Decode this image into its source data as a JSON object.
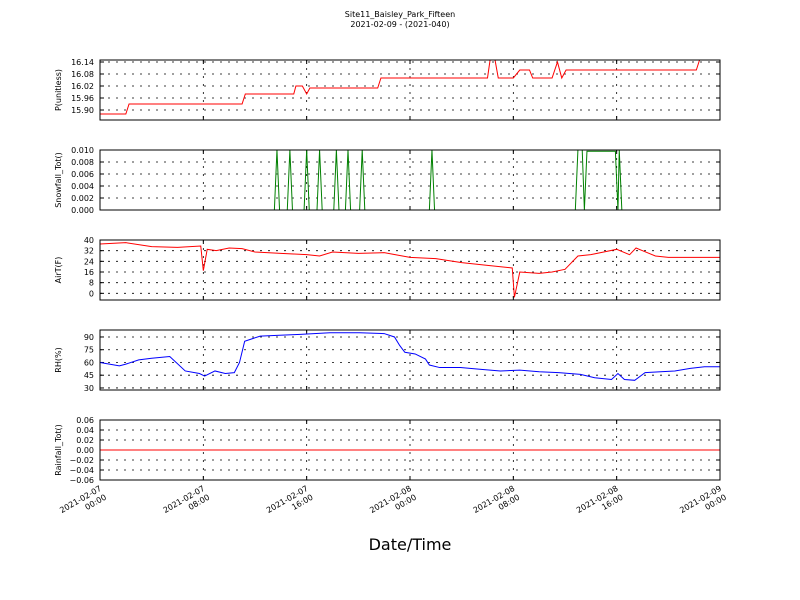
{
  "chart_data": [
    {
      "type": "line",
      "title": "Site11_Baisley_Park_Fifteen",
      "subtitle": "2021-02-09 - (2021-040)",
      "ylabel": "P(unitless)",
      "color": "#ff0000",
      "grid": true,
      "xlim": [
        "2021-02-07 00:00",
        "2021-02-09 00:00"
      ],
      "ylim": [
        15.85,
        16.15
      ],
      "yticks": [
        {
          "value": 15.9,
          "label": "15.90"
        },
        15.96,
        16.02,
        16.08,
        16.14
      ],
      "x": [
        "2021-02-07 00:00",
        "2021-02-07 02:00",
        "2021-02-07 02:15",
        "2021-02-07 11:00",
        "2021-02-07 11:15",
        "2021-02-07 15:00",
        "2021-02-07 15:10",
        "2021-02-07 15:40",
        "2021-02-07 16:00",
        "2021-02-07 16:15",
        "2021-02-07 21:30",
        "2021-02-07 21:45",
        "2021-02-08 06:00",
        "2021-02-08 06:12",
        "2021-02-08 06:35",
        "2021-02-08 06:50",
        "2021-02-08 08:00",
        "2021-02-08 08:30",
        "2021-02-08 09:15",
        "2021-02-08 09:30",
        "2021-02-08 11:00",
        "2021-02-08 11:25",
        "2021-02-08 11:45",
        "2021-02-08 12:05",
        "2021-02-08 22:10",
        "2021-02-08 22:25",
        "2021-02-09 00:00"
      ],
      "values": [
        15.88,
        15.88,
        15.93,
        15.93,
        15.98,
        15.98,
        16.02,
        16.02,
        15.98,
        16.01,
        16.01,
        16.06,
        16.06,
        16.15,
        16.15,
        16.06,
        16.06,
        16.1,
        16.1,
        16.06,
        16.06,
        16.14,
        16.06,
        16.1,
        16.1,
        16.15,
        16.15
      ]
    },
    {
      "type": "line",
      "ylabel": "Snowfall_Tot()",
      "color": "#008000",
      "grid": true,
      "xlim": [
        "2021-02-07 00:00",
        "2021-02-09 00:00"
      ],
      "ylim": [
        0,
        0.01
      ],
      "yticks": [
        {
          "value": 0,
          "label": "0.000"
        },
        {
          "value": 0.002,
          "label": "0.002"
        },
        {
          "value": 0.004,
          "label": "0.004"
        },
        {
          "value": 0.006,
          "label": "0.006"
        },
        {
          "value": 0.008,
          "label": "0.008"
        },
        {
          "value": 0.01,
          "label": "0.010"
        }
      ],
      "x": [
        "2021-02-07 00:00",
        "2021-02-07 13:30",
        "2021-02-07 13:42",
        "2021-02-07 13:54",
        "2021-02-07 14:30",
        "2021-02-07 14:42",
        "2021-02-07 14:54",
        "2021-02-07 15:48",
        "2021-02-07 16:00",
        "2021-02-07 16:12",
        "2021-02-07 16:48",
        "2021-02-07 17:00",
        "2021-02-07 17:12",
        "2021-02-07 18:06",
        "2021-02-07 18:18",
        "2021-02-07 18:30",
        "2021-02-07 19:00",
        "2021-02-07 19:12",
        "2021-02-07 19:24",
        "2021-02-07 20:06",
        "2021-02-07 20:18",
        "2021-02-07 20:30",
        "2021-02-08 01:30",
        "2021-02-08 01:42",
        "2021-02-08 01:54",
        "2021-02-08 12:48",
        "2021-02-08 13:00",
        "2021-02-08 13:20",
        "2021-02-08 13:30",
        "2021-02-08 13:42",
        "2021-02-08 15:54",
        "2021-02-08 16:06",
        "2021-02-08 16:12",
        "2021-02-08 16:24",
        "2021-02-09 00:00"
      ],
      "values": [
        0,
        0,
        0.01,
        0,
        0,
        0.01,
        0,
        0,
        0.01,
        0,
        0,
        0.01,
        0,
        0,
        0.01,
        0,
        0,
        0.01,
        0,
        0,
        0.01,
        0,
        0,
        0.01,
        0,
        0,
        0.01,
        0.01,
        0,
        0.0098,
        0.0098,
        0,
        0.01,
        0,
        0
      ]
    },
    {
      "type": "line",
      "ylabel": "AirT(F)",
      "color": "#ff0000",
      "grid": true,
      "xlim": [
        "2021-02-07 00:00",
        "2021-02-09 00:00"
      ],
      "ylim": [
        -5,
        40
      ],
      "yticks": [
        0,
        8,
        16,
        24,
        32,
        40
      ],
      "x": [
        "2021-02-07 00:00",
        "2021-02-07 02:00",
        "2021-02-07 04:00",
        "2021-02-07 06:00",
        "2021-02-07 07:48",
        "2021-02-07 08:00",
        "2021-02-07 08:18",
        "2021-02-07 09:00",
        "2021-02-07 10:00",
        "2021-02-07 11:00",
        "2021-02-07 12:00",
        "2021-02-07 14:00",
        "2021-02-07 16:00",
        "2021-02-07 17:00",
        "2021-02-07 18:00",
        "2021-02-07 20:00",
        "2021-02-07 22:00",
        "2021-02-08 00:00",
        "2021-02-08 02:00",
        "2021-02-08 04:00",
        "2021-02-08 06:00",
        "2021-02-08 07:55",
        "2021-02-08 08:05",
        "2021-02-08 08:30",
        "2021-02-08 10:00",
        "2021-02-08 11:00",
        "2021-02-08 12:00",
        "2021-02-08 13:00",
        "2021-02-08 14:00",
        "2021-02-08 15:00",
        "2021-02-08 16:00",
        "2021-02-08 17:00",
        "2021-02-08 17:30",
        "2021-02-08 18:00",
        "2021-02-08 19:00",
        "2021-02-08 20:00",
        "2021-02-08 22:00",
        "2021-02-09 00:00"
      ],
      "values": [
        37,
        38,
        35,
        34.5,
        35.5,
        17,
        33,
        32,
        34,
        33.5,
        31,
        30,
        29,
        28,
        31,
        30,
        30.5,
        27,
        26,
        23,
        21,
        19,
        -3,
        16,
        15,
        16,
        18,
        28,
        29,
        31,
        33,
        29,
        34,
        32,
        28,
        27,
        27,
        27
      ]
    },
    {
      "type": "line",
      "ylabel": "RH(%)",
      "color": "#0000ff",
      "grid": true,
      "xlim": [
        "2021-02-07 00:00",
        "2021-02-09 00:00"
      ],
      "ylim": [
        27.6,
        98.2
      ],
      "yticks": [
        30,
        45,
        60,
        75,
        90
      ],
      "x": [
        "2021-02-07 00:00",
        "2021-02-07 01:30",
        "2021-02-07 02:00",
        "2021-02-07 03:00",
        "2021-02-07 04:00",
        "2021-02-07 05:24",
        "2021-02-07 06:36",
        "2021-02-07 07:42",
        "2021-02-07 08:06",
        "2021-02-07 08:54",
        "2021-02-07 09:42",
        "2021-02-07 10:24",
        "2021-02-07 10:48",
        "2021-02-07 11:12",
        "2021-02-07 12:24",
        "2021-02-07 13:54",
        "2021-02-07 15:30",
        "2021-02-07 17:48",
        "2021-02-07 20:06",
        "2021-02-07 22:00",
        "2021-02-07 22:48",
        "2021-02-07 23:12",
        "2021-02-07 23:36",
        "2021-02-08 00:24",
        "2021-02-08 01:12",
        "2021-02-08 01:30",
        "2021-02-08 02:18",
        "2021-02-08 03:54",
        "2021-02-08 05:24",
        "2021-02-08 07:00",
        "2021-02-08 08:30",
        "2021-02-08 10:00",
        "2021-02-08 11:30",
        "2021-02-08 13:12",
        "2021-02-08 14:18",
        "2021-02-08 15:36",
        "2021-02-08 16:06",
        "2021-02-08 16:36",
        "2021-02-08 17:24",
        "2021-02-08 18:12",
        "2021-02-08 19:24",
        "2021-02-08 20:30",
        "2021-02-08 21:42",
        "2021-02-08 22:48",
        "2021-02-09 00:00"
      ],
      "values": [
        60,
        56,
        58,
        63,
        65,
        67,
        50,
        47,
        44,
        50,
        47,
        48,
        60,
        85,
        91,
        92,
        93,
        95,
        95,
        94,
        90,
        80,
        72,
        70,
        64,
        57,
        54,
        54,
        52,
        50,
        51,
        49,
        48,
        46,
        42,
        40,
        47,
        40,
        39,
        48,
        49,
        50,
        53,
        55,
        55
      ]
    },
    {
      "type": "line",
      "ylabel": "Rainfall_Tot()",
      "xlabel": "Date/Time",
      "color": "#ff0000",
      "grid": true,
      "xlim": [
        "2021-02-07 00:00",
        "2021-02-09 00:00"
      ],
      "ylim": [
        -0.06,
        0.06
      ],
      "yticks": [
        {
          "value": -0.06,
          "label": "−0.06"
        },
        {
          "value": -0.04,
          "label": "−0.04"
        },
        {
          "value": -0.02,
          "label": "−0.02"
        },
        {
          "value": 0,
          "label": "0.00"
        },
        0.02,
        0.04,
        0.06
      ],
      "xticks": [
        {
          "value": "2021-02-07 00:00",
          "label": "2021-02-07\n00:00"
        },
        {
          "value": "2021-02-07 08:00",
          "label": "2021-02-07\n08:00"
        },
        {
          "value": "2021-02-07 16:00",
          "label": "2021-02-07\n16:00"
        },
        {
          "value": "2021-02-08 00:00",
          "label": "2021-02-08\n00:00"
        },
        {
          "value": "2021-02-08 08:00",
          "label": "2021-02-08\n08:00"
        },
        {
          "value": "2021-02-08 16:00",
          "label": "2021-02-08\n16:00"
        },
        {
          "value": "2021-02-09 00:00",
          "label": "2021-02-09\n00:00"
        }
      ],
      "x": [
        "2021-02-07 00:00",
        "2021-02-09 00:00"
      ],
      "values": [
        0,
        0
      ]
    }
  ]
}
